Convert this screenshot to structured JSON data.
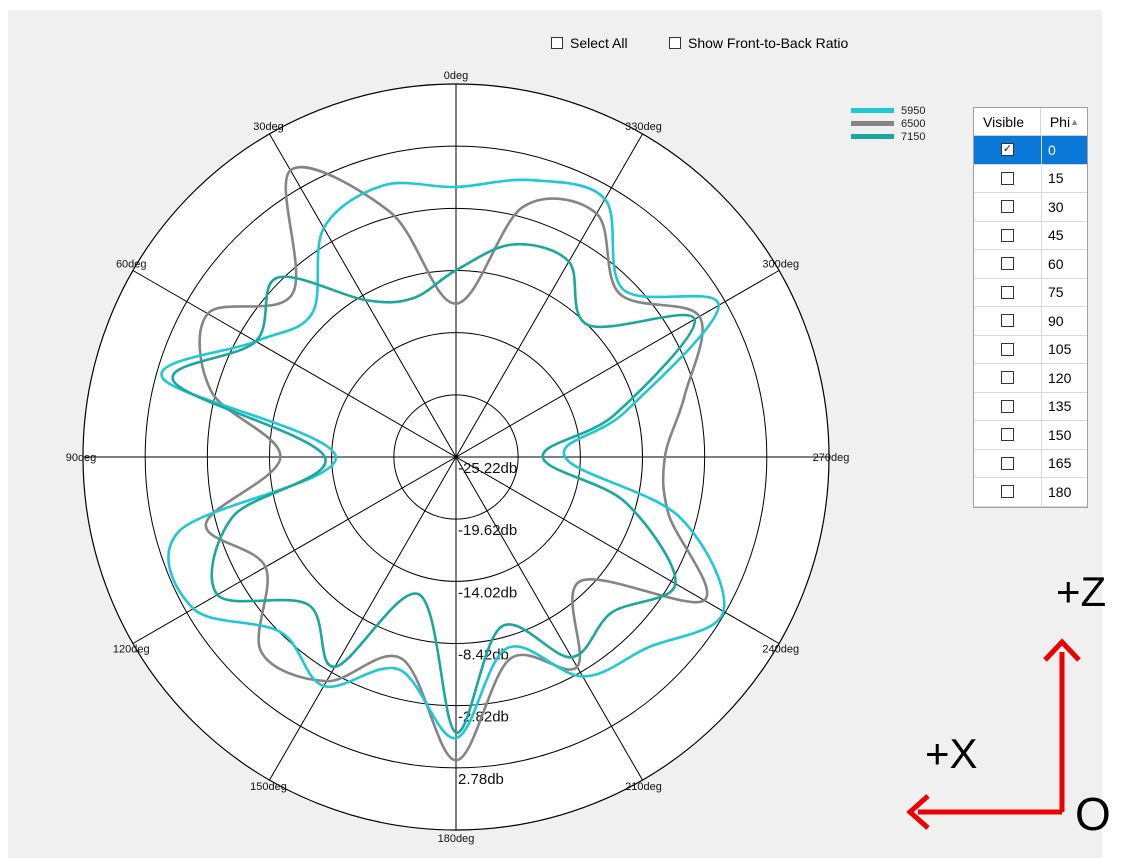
{
  "toolbar": {
    "select_all_label": "Select All",
    "show_ftb_label": "Show Front-to-Back Ratio"
  },
  "chart_data": {
    "type": "polar-line",
    "angular_ticks": [
      "0deg",
      "30deg",
      "60deg",
      "90deg",
      "120deg",
      "150deg",
      "180deg",
      "210deg",
      "240deg",
      "270deg",
      "300deg",
      "330deg"
    ],
    "angular_direction": "counterclockwise",
    "zero_location": "top",
    "radial_labels": [
      "-25.22db",
      "-19.62db",
      "-14.02db",
      "-8.42db",
      "-2.82db",
      "2.78db"
    ],
    "radial_range": [
      -30.82,
      2.78
    ],
    "legend_position": "top-right",
    "series": [
      {
        "name": "5950",
        "color": "#1ec8d4",
        "angles": [
          0,
          15,
          30,
          45,
          60,
          75,
          90,
          105,
          120,
          135,
          150,
          165,
          180,
          195,
          210,
          225,
          240,
          255,
          270,
          285,
          300,
          315,
          330,
          345
        ],
        "values": [
          -6.5,
          -5.5,
          -7,
          -12.5,
          -10,
          -3.5,
          -20,
          -5,
          -3.5,
          -8.5,
          -7,
          -11,
          -5.5,
          -13,
          -8,
          -6.5,
          -3,
          -10,
          -21,
          -15,
          -3.5,
          -9.5,
          -4,
          -5
        ]
      },
      {
        "name": "6500",
        "color": "#858585",
        "angles": [
          0,
          15,
          30,
          45,
          60,
          75,
          90,
          105,
          120,
          135,
          150,
          165,
          180,
          195,
          210,
          225,
          240,
          255,
          270,
          285,
          300,
          315,
          330,
          345
        ],
        "values": [
          -17,
          -8,
          -1,
          -10,
          -5,
          -8,
          -15,
          -7.5,
          -11,
          -6,
          -7.5,
          -12,
          -3.5,
          -12,
          -9,
          -15,
          -5,
          -11,
          -12,
          -9.5,
          -5.5,
          -10,
          -5.5,
          -7.5
        ]
      },
      {
        "name": "7150",
        "color": "#1aa89e",
        "angles": [
          0,
          15,
          30,
          45,
          60,
          75,
          90,
          105,
          120,
          135,
          150,
          165,
          180,
          195,
          210,
          225,
          240,
          255,
          270,
          285,
          300,
          315,
          330,
          345
        ],
        "values": [
          -14,
          -16,
          -14.5,
          -8,
          -10,
          -4.5,
          -19,
          -10,
          -6,
          -12,
          -9,
          -18,
          -6,
          -15,
          -10,
          -11,
          -8,
          -15,
          -23,
          -16,
          -6,
          -14,
          -10.5,
          -11
        ]
      }
    ]
  },
  "legend": {
    "items": [
      {
        "label": "5950",
        "color": "#1ec8d4"
      },
      {
        "label": "6500",
        "color": "#858585"
      },
      {
        "label": "7150",
        "color": "#1aa89e"
      }
    ]
  },
  "phi_table": {
    "headers": {
      "visible": "Visible",
      "phi": "Phi"
    },
    "rows": [
      {
        "phi": "0",
        "checked": true,
        "selected": true
      },
      {
        "phi": "15",
        "checked": false,
        "selected": false
      },
      {
        "phi": "30",
        "checked": false,
        "selected": false
      },
      {
        "phi": "45",
        "checked": false,
        "selected": false
      },
      {
        "phi": "60",
        "checked": false,
        "selected": false
      },
      {
        "phi": "75",
        "checked": false,
        "selected": false
      },
      {
        "phi": "90",
        "checked": false,
        "selected": false
      },
      {
        "phi": "105",
        "checked": false,
        "selected": false
      },
      {
        "phi": "120",
        "checked": false,
        "selected": false
      },
      {
        "phi": "135",
        "checked": false,
        "selected": false
      },
      {
        "phi": "150",
        "checked": false,
        "selected": false
      },
      {
        "phi": "165",
        "checked": false,
        "selected": false
      },
      {
        "phi": "180",
        "checked": false,
        "selected": false
      }
    ]
  },
  "axes_annotation": {
    "z_label": "+Z",
    "x_label": "+X",
    "origin_label": "O",
    "arrow_color": "#ee0000"
  }
}
